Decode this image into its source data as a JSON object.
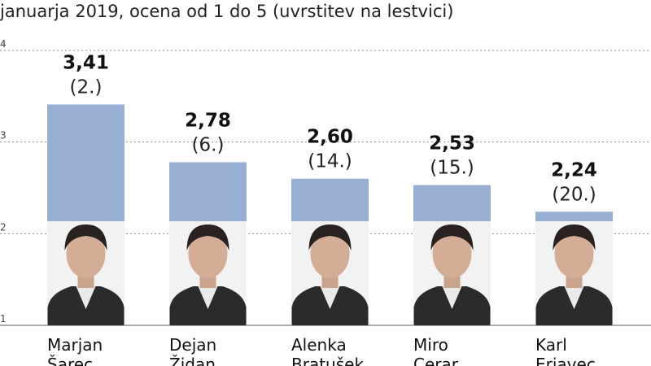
{
  "subtitle": "januarja 2019, ocena od 1 do 5 (uvrstitev na lestvici)",
  "colors": {
    "bar": "#98afd4",
    "grid": "#8a8a8a",
    "photo_bg": "#f2f2f2"
  },
  "chart_data": {
    "type": "bar",
    "title": "",
    "xlabel": "",
    "ylabel": "",
    "ylim": [
      1,
      4
    ],
    "yticks": [
      1,
      2,
      3,
      4
    ],
    "grid": true,
    "legend": "none",
    "categories": [
      [
        "Marjan",
        "Šarec"
      ],
      [
        "Dejan",
        "Židan"
      ],
      [
        "Alenka",
        "Bratušek"
      ],
      [
        "Miro",
        "Cerar"
      ],
      [
        "Karl",
        "Erjavec"
      ]
    ],
    "values": [
      3.41,
      2.78,
      2.6,
      2.53,
      2.24
    ],
    "value_labels": [
      "3,41",
      "2,78",
      "2,60",
      "2,53",
      "2,24"
    ],
    "rank_labels": [
      "(2.)",
      "(6.)",
      "(14.)",
      "(15.)",
      "(20.)"
    ]
  }
}
